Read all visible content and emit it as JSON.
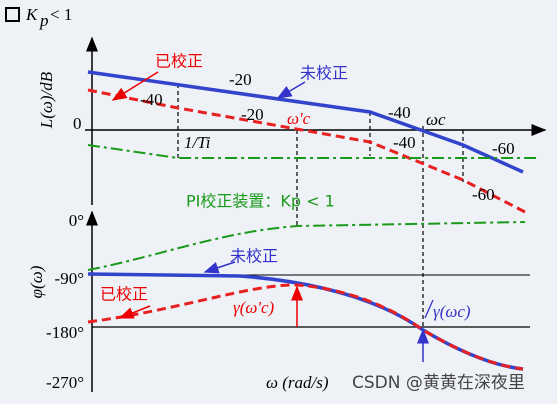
{
  "header": {
    "title": "K",
    "title_sub": "p",
    "title_rest": "< 1"
  },
  "magnitude": {
    "axis_label": "L(ω)/dB",
    "zero": "0",
    "corrected": "已校正",
    "uncorrected": "未校正",
    "slopes": [
      "-20",
      "-40",
      "-20",
      "-40",
      "-40",
      "-60",
      "-60"
    ],
    "wc_prime": "ω'c",
    "wc": "ωc",
    "corner": "1/Ti",
    "pi_label": "PI校正装置：Kp < 1"
  },
  "phase": {
    "axis_label": "φ(ω)",
    "ticks": [
      "0°",
      "-90°",
      "-180°",
      "-270°"
    ],
    "uncorrected": "未校正",
    "corrected": "已校正",
    "gamma_corrected": "γ(ω'c)",
    "gamma_uncorrected": "γ(ωc)",
    "x_label": "ω  (rad/s)"
  },
  "watermark": "CSDN @黄黄在深夜里"
}
